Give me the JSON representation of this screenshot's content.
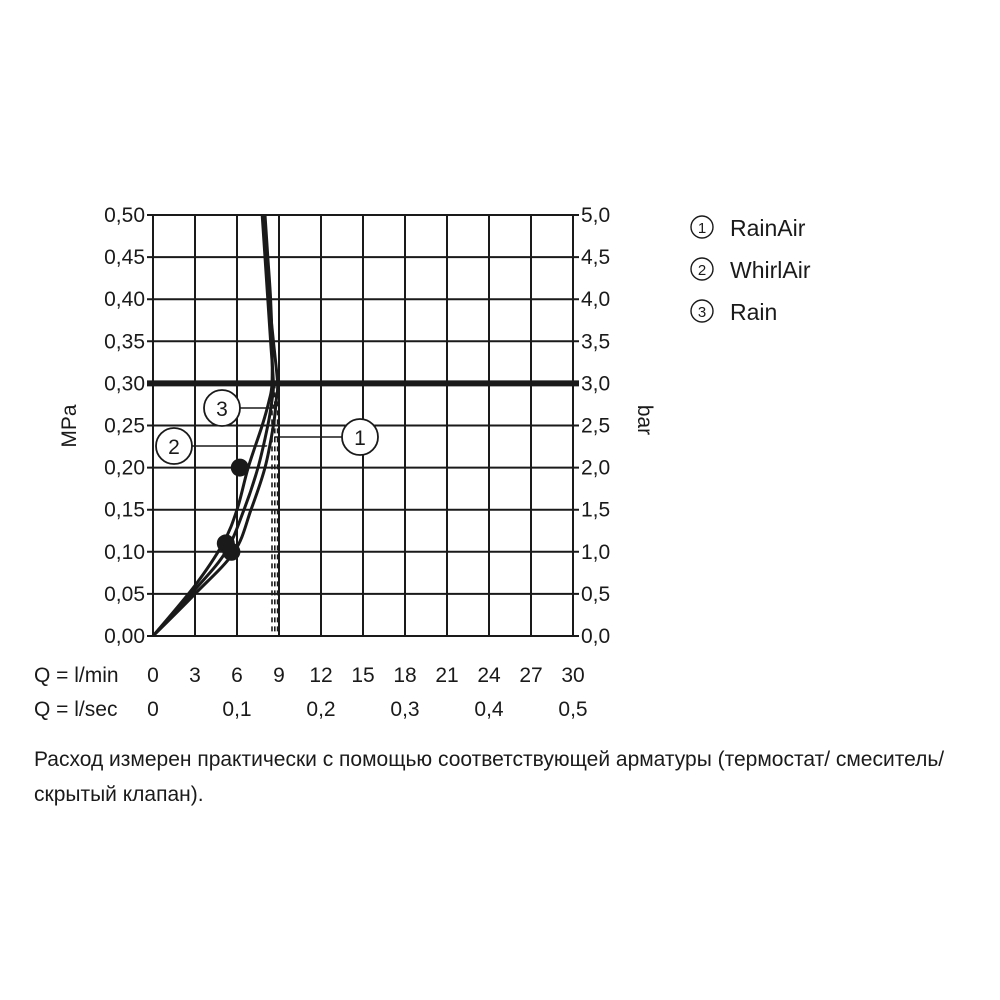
{
  "chart_data": {
    "type": "line",
    "ylabel": "MPa",
    "y2label": "bar",
    "ylim": [
      0,
      0.5
    ],
    "y2lim": [
      0,
      5.0
    ],
    "xlim": [
      0,
      30
    ],
    "y_ticks": [
      "0,00",
      "0,05",
      "0,10",
      "0,15",
      "0,20",
      "0,25",
      "0,30",
      "0,35",
      "0,40",
      "0,45",
      "0,50"
    ],
    "y2_ticks": [
      "0,0",
      "0,5",
      "1,0",
      "1,5",
      "2,0",
      "2,5",
      "3,0",
      "3,5",
      "4,0",
      "4,5",
      "5,0"
    ],
    "x_rows": [
      {
        "label": "Q = l/min",
        "ticks": [
          {
            "x": 0,
            "text": "0"
          },
          {
            "x": 3,
            "text": "3"
          },
          {
            "x": 6,
            "text": "6"
          },
          {
            "x": 9,
            "text": "9"
          },
          {
            "x": 12,
            "text": "12"
          },
          {
            "x": 15,
            "text": "15"
          },
          {
            "x": 18,
            "text": "18"
          },
          {
            "x": 21,
            "text": "21"
          },
          {
            "x": 24,
            "text": "24"
          },
          {
            "x": 27,
            "text": "27"
          },
          {
            "x": 30,
            "text": "30"
          }
        ]
      },
      {
        "label": "Q = l/sec",
        "ticks": [
          {
            "x": 0,
            "text": "0"
          },
          {
            "x": 6,
            "text": "0,1"
          },
          {
            "x": 12,
            "text": "0,2"
          },
          {
            "x": 18,
            "text": "0,3"
          },
          {
            "x": 24,
            "text": "0,4"
          },
          {
            "x": 30,
            "text": "0,5"
          }
        ]
      }
    ],
    "reference_line_y": 0.3,
    "series": [
      {
        "marker": "1",
        "name": "RainAir",
        "points": [
          [
            0,
            0
          ],
          [
            3,
            0.05
          ],
          [
            5.8,
            0.1
          ],
          [
            7,
            0.15
          ],
          [
            8,
            0.2
          ],
          [
            8.6,
            0.25
          ],
          [
            8.8,
            0.28
          ],
          [
            8.9,
            0.3
          ],
          [
            8.6,
            0.35
          ],
          [
            8.3,
            0.4
          ],
          [
            8.1,
            0.45
          ],
          [
            7.9,
            0.5
          ]
        ],
        "dropline_x": 8.9,
        "callout_point": [
          8.7,
          0.237
        ]
      },
      {
        "marker": "2",
        "name": "WhirlAir",
        "points": [
          [
            0,
            0
          ],
          [
            3,
            0.055
          ],
          [
            5.2,
            0.1
          ],
          [
            6.5,
            0.15
          ],
          [
            7.5,
            0.2
          ],
          [
            8.2,
            0.25
          ],
          [
            8.5,
            0.28
          ],
          [
            8.6,
            0.3
          ],
          [
            8.4,
            0.35
          ],
          [
            8.2,
            0.4
          ],
          [
            8.0,
            0.45
          ],
          [
            7.8,
            0.5
          ]
        ],
        "dropline_x": 8.5,
        "callout_point": [
          8.1,
          0.225
        ]
      },
      {
        "marker": "3",
        "name": "Rain",
        "points": [
          [
            0,
            0
          ],
          [
            3,
            0.06
          ],
          [
            5,
            0.11
          ],
          [
            6,
            0.15
          ],
          [
            6.8,
            0.2
          ],
          [
            7.8,
            0.25
          ],
          [
            8.3,
            0.28
          ],
          [
            8.5,
            0.3
          ],
          [
            8.5,
            0.35
          ],
          [
            8.4,
            0.4
          ],
          [
            8.2,
            0.45
          ],
          [
            8.0,
            0.5
          ]
        ],
        "dropline_x": 8.7,
        "callout_point": [
          8.6,
          0.275
        ]
      }
    ],
    "markers_dots": [
      [
        5.2,
        0.11
      ],
      [
        5.6,
        0.1
      ],
      [
        6.2,
        0.2
      ]
    ]
  },
  "legend": {
    "items": [
      {
        "marker": "1",
        "name": "RainAir"
      },
      {
        "marker": "2",
        "name": "WhirlAir"
      },
      {
        "marker": "3",
        "name": "Rain"
      }
    ]
  },
  "note": "Расход измерен практически с помощью соответствующей арматуры (термостат/ смеситель/скрытый клапан)."
}
